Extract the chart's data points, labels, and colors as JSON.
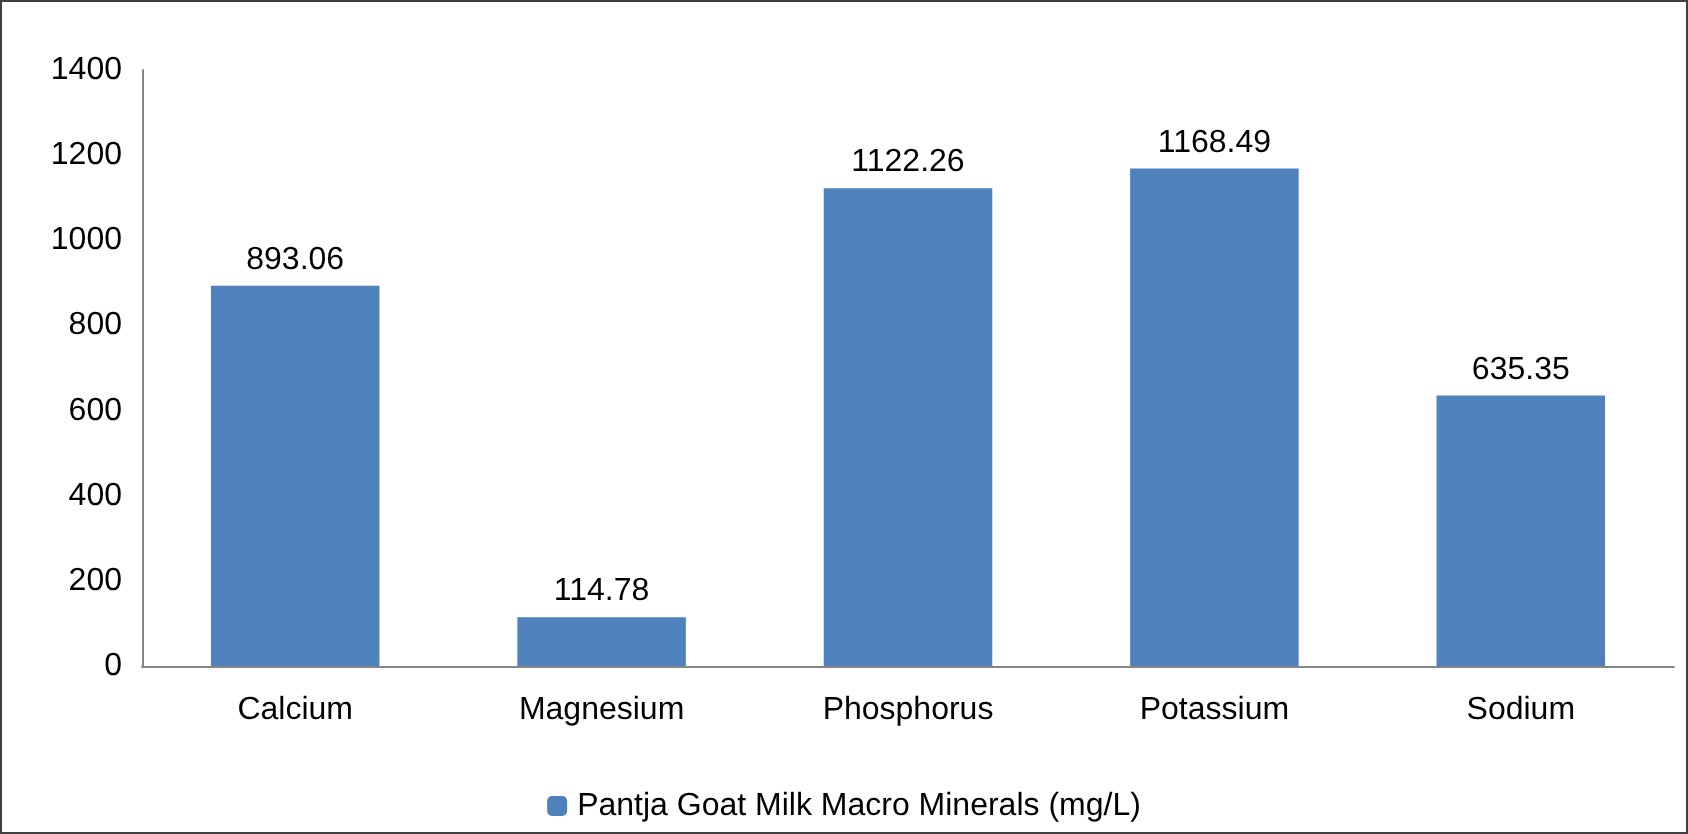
{
  "chart_data": {
    "type": "bar",
    "categories": [
      "Calcium",
      "Magnesium",
      "Phosphorus",
      "Potassium",
      "Sodium"
    ],
    "series": [
      {
        "name": "Pantja Goat Milk Macro Minerals (mg/L)",
        "color": "#4f81bd",
        "values": [
          893.06,
          114.78,
          1122.26,
          1168.49,
          635.35
        ]
      }
    ],
    "ylim": [
      0,
      1400
    ],
    "yticks": [
      0,
      200,
      400,
      600,
      800,
      1000,
      1200,
      1400
    ],
    "grid": false,
    "legend": "bottom",
    "data_labels": true
  }
}
